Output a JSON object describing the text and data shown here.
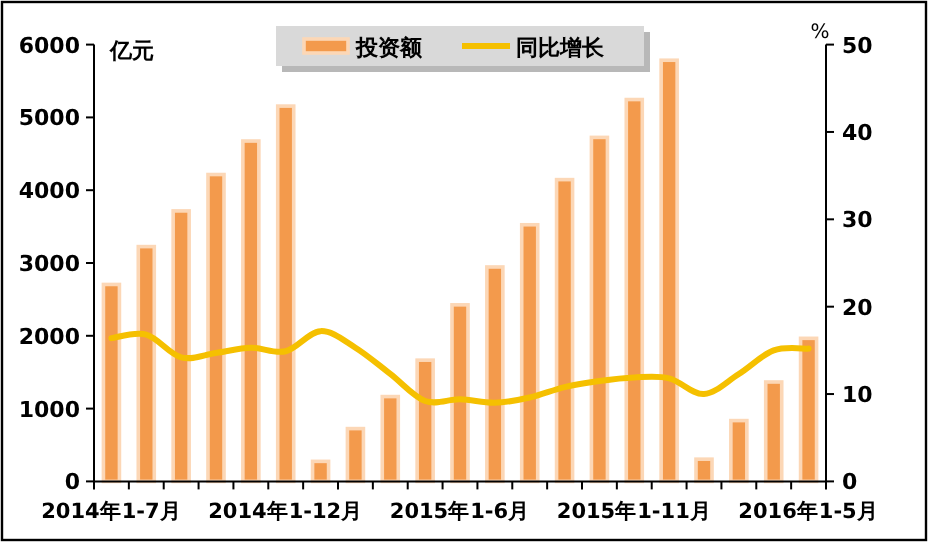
{
  "chart_data": {
    "type": "bar",
    "ylabel": "亿元",
    "y2label": "%",
    "categories": [
      "2014年1-7月",
      null,
      null,
      null,
      null,
      "2014年1-12月",
      null,
      null,
      null,
      null,
      "2015年1-6月",
      null,
      null,
      null,
      null,
      "2015年1-11月",
      null,
      null,
      null,
      null,
      "2016年1-5月"
    ],
    "series": [
      {
        "name": "投资额",
        "color": "#f39a4c",
        "values": [
          2730,
          3250,
          3740,
          4240,
          4700,
          5180,
          300,
          750,
          1190,
          1690,
          2450,
          2970,
          3550,
          4170,
          4750,
          5270,
          5810,
          330,
          860,
          1390,
          1990
        ]
      },
      {
        "name": "同比增长",
        "type": "line",
        "axis": "y2",
        "color": "#f5c000",
        "values": [
          16.4,
          16.8,
          14.2,
          14.7,
          15.3,
          14.9,
          17.2,
          15.3,
          12.3,
          9.2,
          9.4,
          9.0,
          9.6,
          10.8,
          11.5,
          11.9,
          11.8,
          10.0,
          12.3,
          15.0,
          15.2
        ]
      }
    ],
    "ylim": [
      0,
      6000
    ],
    "yticks": [
      0,
      1000,
      2000,
      3000,
      4000,
      5000,
      6000
    ],
    "y2lim": [
      0,
      50
    ],
    "y2ticks": [
      0,
      10,
      20,
      30,
      40,
      50
    ],
    "legend": "top"
  }
}
